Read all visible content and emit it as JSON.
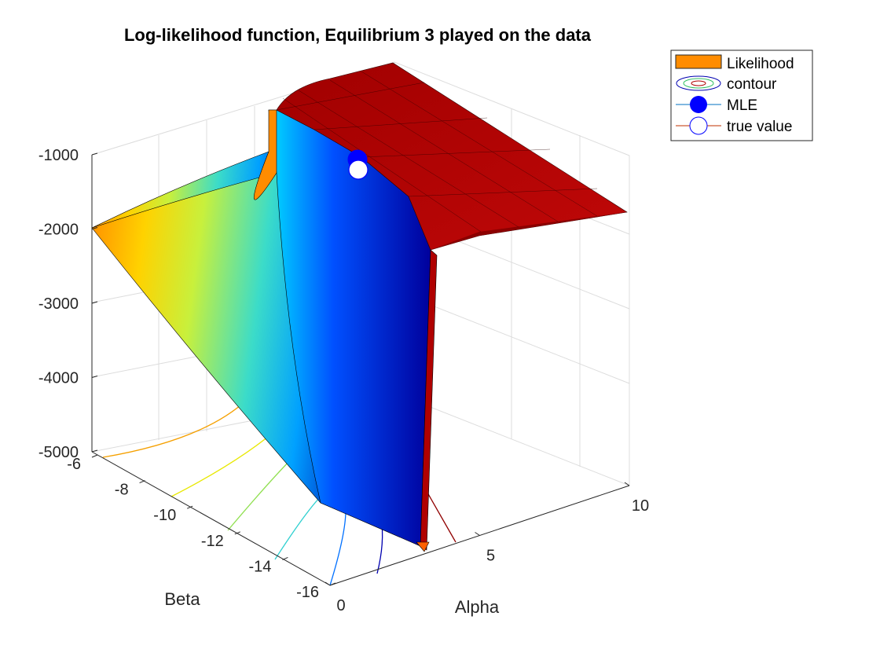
{
  "chart_data": {
    "type": "surface",
    "title": "Log-likelihood function, Equilibrium 3 played on the data",
    "xlabel": "Alpha",
    "ylabel": "Beta",
    "zlabel": "",
    "x_ticks": [
      "0",
      "5",
      "10"
    ],
    "y_ticks": [
      "-6",
      "-8",
      "-10",
      "-12",
      "-14",
      "-16"
    ],
    "z_ticks": [
      "-1000",
      "-2000",
      "-3000",
      "-4000",
      "-5000"
    ],
    "xlim": [
      0,
      10
    ],
    "ylim": [
      -16,
      -6
    ],
    "zlim": [
      -5000,
      -1000
    ],
    "colormap": "jet",
    "grid": true,
    "legend_position": "top-right",
    "legend": [
      {
        "label": "Likelihood",
        "kind": "patch",
        "color": "#ff8c00"
      },
      {
        "label": "contour",
        "kind": "contour"
      },
      {
        "label": "MLE",
        "kind": "marker-filled",
        "color": "#0000ff"
      },
      {
        "label": "true value",
        "kind": "marker-open",
        "color": "#0000ff"
      }
    ],
    "surface_notes": "Left region: smooth log-likelihood surface that drops from about -2000 at Alpha=0 to near -5000 as Beta decreases; at the cliff it falls vertically. Right region (Alpha > ~3): high plateau near -1000 to -2000.",
    "points": [
      {
        "name": "MLE",
        "alpha": 3.3,
        "beta": -6.8,
        "loglik": -1000
      },
      {
        "name": "true value",
        "alpha": 3.0,
        "beta": -7.0,
        "loglik": -1100
      }
    ]
  }
}
